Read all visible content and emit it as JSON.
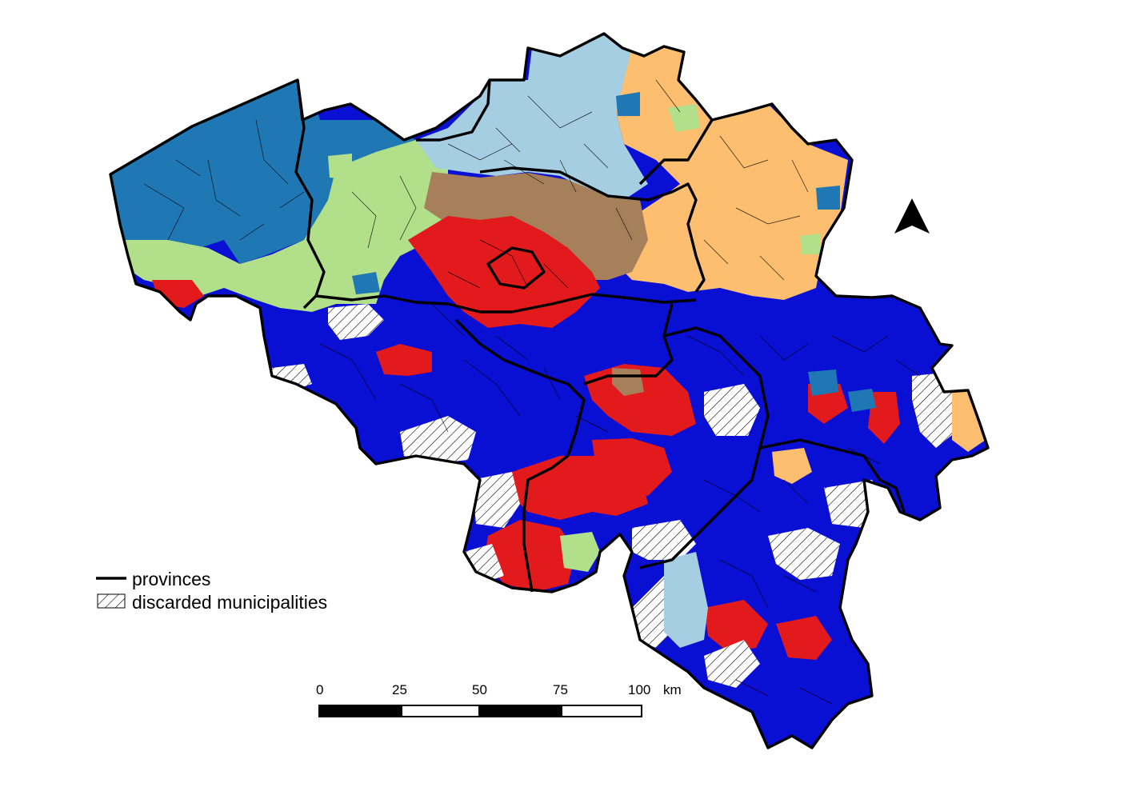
{
  "legend": {
    "provinces_label": "provinces",
    "discarded_label": "discarded municipalities"
  },
  "scale_bar": {
    "ticks": [
      "0",
      "25",
      "50",
      "75",
      "100"
    ],
    "unit": "km"
  },
  "north_arrow": {
    "icon": "north-arrow-icon"
  },
  "colors": {
    "flanders_west": "#1f78b4",
    "flanders_east_green": "#b2df8a",
    "antwerp_lightblue": "#a6cee3",
    "limburg_orange": "#fdbf6f",
    "brabant_brown": "#a6805a",
    "brussels_red": "#e31a1c",
    "wallonia_blue": "#0a0fd4",
    "discarded_fill": "#ffffff",
    "border": "#000000"
  }
}
